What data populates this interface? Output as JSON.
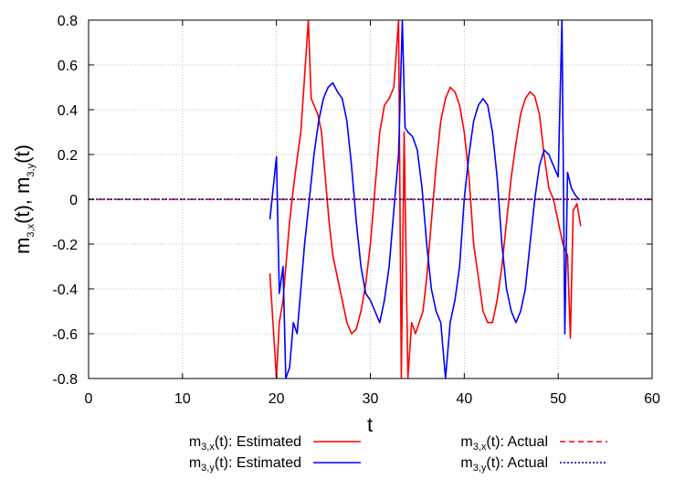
{
  "chart_data": {
    "type": "line",
    "title": "",
    "xlabel": "t",
    "ylabel": {
      "main": "m",
      "sub_x": "3,x",
      "sub_y": "3,y",
      "text_x": "(t), ",
      "text_y": "(t)"
    },
    "xlim": [
      0,
      60
    ],
    "ylim": [
      -0.8,
      0.8
    ],
    "xticks": [
      0,
      10,
      20,
      30,
      40,
      50,
      60
    ],
    "yticks": [
      -0.8,
      -0.6,
      -0.4,
      -0.2,
      0,
      0.2,
      0.4,
      0.6,
      0.8
    ],
    "xtick_labels": [
      "0",
      "10",
      "20",
      "30",
      "40",
      "50",
      "60"
    ],
    "ytick_labels": [
      "-0.8",
      "-0.6",
      "-0.4",
      "-0.2",
      "0",
      "0.2",
      "0.4",
      "0.6",
      "0.8"
    ],
    "grid": true,
    "legend_position": "bottom",
    "series": [
      {
        "name": "m3,x(t): Estimated",
        "legend": {
          "main": "m",
          "sub": "3,x",
          "rest": "(t): Estimated"
        },
        "color": "#ff0000",
        "style": "solid",
        "x": [
          19.3,
          20.0,
          20.3,
          20.7,
          21.0,
          21.4,
          21.8,
          22.2,
          22.6,
          23.0,
          23.4,
          23.7,
          24.0,
          24.4,
          24.8,
          25.2,
          25.6,
          26.0,
          26.5,
          27.0,
          27.5,
          28.0,
          28.5,
          29.0,
          29.5,
          30.0,
          30.5,
          31.0,
          31.5,
          32.0,
          32.5,
          33.0,
          33.3,
          33.6,
          34.0,
          34.4,
          34.8,
          35.2,
          35.6,
          36.0,
          36.5,
          37.0,
          37.5,
          38.0,
          38.5,
          39.0,
          39.5,
          40.0,
          40.5,
          41.0,
          41.5,
          42.0,
          42.5,
          43.0,
          43.5,
          44.0,
          44.5,
          45.0,
          45.5,
          46.0,
          46.5,
          47.0,
          47.5,
          48.0,
          48.5,
          49.0,
          49.5,
          50.0,
          50.5,
          51.0,
          51.3,
          51.6,
          52.0,
          52.4
        ],
        "y": [
          -0.33,
          -0.8,
          -0.55,
          -0.45,
          -0.3,
          -0.1,
          0.05,
          0.18,
          0.3,
          0.55,
          0.8,
          0.45,
          0.42,
          0.38,
          0.3,
          0.1,
          -0.1,
          -0.25,
          -0.35,
          -0.45,
          -0.55,
          -0.6,
          -0.58,
          -0.5,
          -0.38,
          -0.2,
          0.05,
          0.3,
          0.42,
          0.45,
          0.5,
          0.8,
          -0.8,
          0.3,
          -0.8,
          -0.55,
          -0.6,
          -0.55,
          -0.5,
          -0.35,
          -0.1,
          0.15,
          0.35,
          0.45,
          0.5,
          0.48,
          0.42,
          0.3,
          0.1,
          -0.2,
          -0.35,
          -0.5,
          -0.55,
          -0.55,
          -0.45,
          -0.3,
          -0.1,
          0.1,
          0.25,
          0.38,
          0.45,
          0.48,
          0.46,
          0.38,
          0.2,
          0.05,
          0.0,
          -0.1,
          -0.2,
          -0.25,
          -0.62,
          -0.05,
          -0.02,
          -0.12
        ]
      },
      {
        "name": "m3,y(t): Estimated",
        "legend": {
          "main": "m",
          "sub": "3,y",
          "rest": "(t): Estimated"
        },
        "color": "#0000ff",
        "style": "solid",
        "x": [
          19.3,
          20.0,
          20.3,
          20.7,
          21.0,
          21.4,
          21.8,
          22.2,
          22.6,
          23.0,
          23.5,
          24.0,
          24.5,
          25.0,
          25.5,
          26.0,
          26.5,
          27.0,
          27.5,
          28.0,
          28.5,
          29.0,
          29.5,
          30.0,
          30.5,
          31.0,
          31.5,
          32.0,
          32.5,
          33.0,
          33.4,
          33.7,
          34.0,
          34.5,
          35.0,
          35.5,
          36.0,
          36.5,
          37.0,
          37.5,
          38.0,
          38.5,
          39.0,
          39.5,
          40.0,
          40.5,
          41.0,
          41.5,
          42.0,
          42.5,
          43.0,
          43.5,
          44.0,
          44.5,
          45.0,
          45.5,
          46.0,
          46.5,
          47.0,
          47.5,
          48.0,
          48.5,
          49.0,
          49.5,
          50.0,
          50.4,
          50.7,
          51.0,
          51.4,
          51.8,
          52.2
        ],
        "y": [
          -0.09,
          0.19,
          -0.42,
          -0.3,
          -0.8,
          -0.75,
          -0.55,
          -0.6,
          -0.4,
          -0.2,
          0.0,
          0.2,
          0.35,
          0.45,
          0.5,
          0.52,
          0.48,
          0.45,
          0.35,
          0.15,
          -0.1,
          -0.3,
          -0.42,
          -0.45,
          -0.5,
          -0.55,
          -0.45,
          -0.3,
          -0.05,
          0.2,
          0.8,
          0.32,
          0.3,
          0.28,
          0.22,
          0.05,
          -0.2,
          -0.4,
          -0.5,
          -0.55,
          -0.8,
          -0.55,
          -0.45,
          -0.3,
          0.0,
          0.2,
          0.35,
          0.42,
          0.45,
          0.42,
          0.3,
          0.1,
          -0.2,
          -0.4,
          -0.5,
          -0.55,
          -0.5,
          -0.4,
          -0.2,
          0.0,
          0.15,
          0.22,
          0.2,
          0.15,
          0.1,
          0.8,
          -0.6,
          0.12,
          0.05,
          0.02,
          0.0
        ]
      },
      {
        "name": "m3,x(t): Actual",
        "legend": {
          "main": "m",
          "sub": "3,x",
          "rest": "(t): Actual"
        },
        "color": "#ff0000",
        "style": "dashed",
        "x": [
          0,
          60
        ],
        "y": [
          0,
          0
        ]
      },
      {
        "name": "m3,y(t): Actual",
        "legend": {
          "main": "m",
          "sub": "3,y",
          "rest": "(t): Actual"
        },
        "color": "#0000aa",
        "style": "dotted",
        "x": [
          0,
          60
        ],
        "y": [
          0,
          0
        ]
      }
    ]
  }
}
